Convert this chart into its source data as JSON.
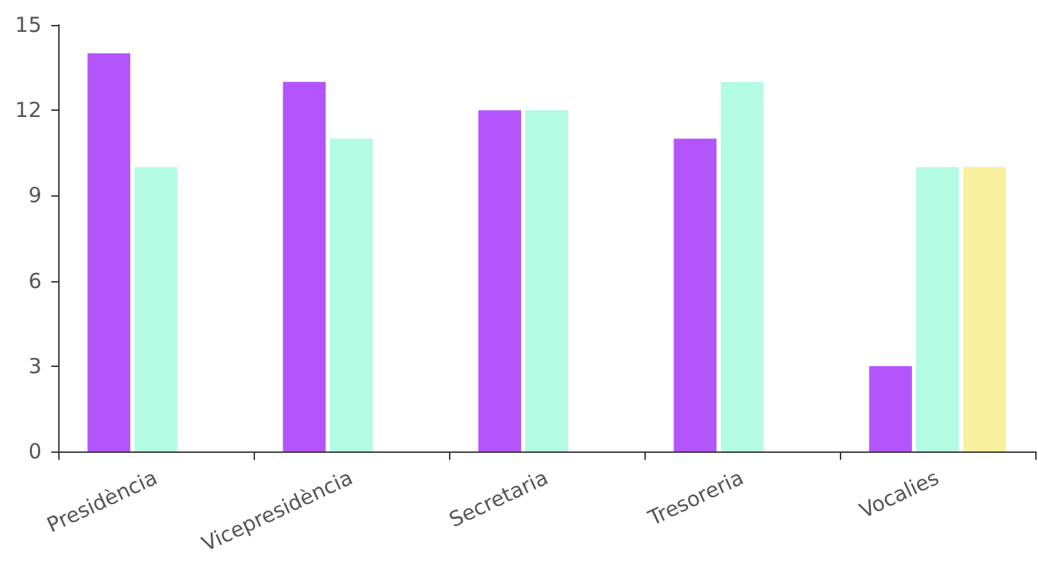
{
  "chart_data": {
    "type": "bar",
    "categories": [
      "Presidència",
      "Vicepresidència",
      "Secretaria",
      "Tresoreria",
      "Vocalies"
    ],
    "series": [
      {
        "color": "#b455fb",
        "values": [
          14,
          13,
          12,
          11,
          3
        ]
      },
      {
        "color": "#b3fbe3",
        "values": [
          10,
          11,
          12,
          13,
          10
        ]
      },
      {
        "color": "#f9f09d",
        "values": [
          null,
          null,
          null,
          null,
          10
        ]
      }
    ],
    "ylim": [
      0,
      15
    ],
    "yticks": [
      0,
      3,
      6,
      9,
      12,
      15
    ],
    "grid": false
  }
}
